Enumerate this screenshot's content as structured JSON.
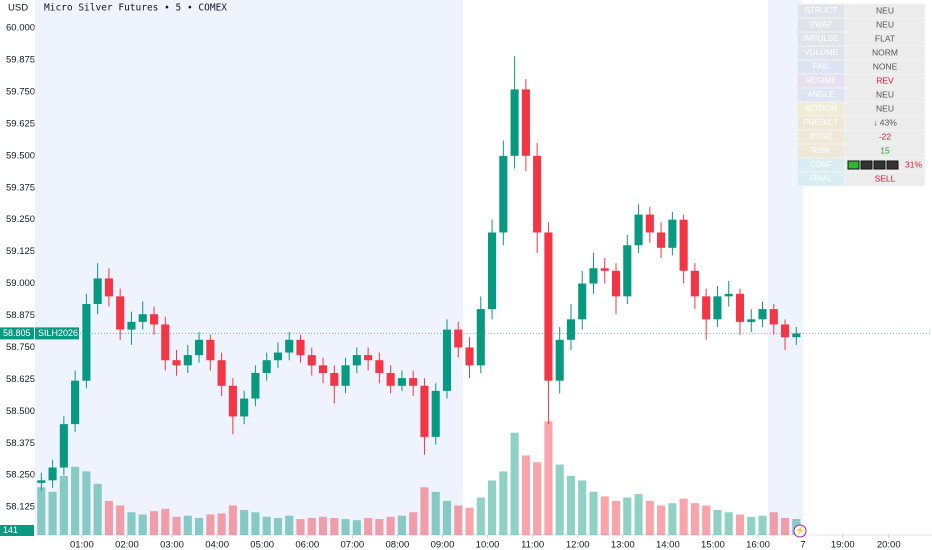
{
  "chart_data": {
    "type": "candlestick",
    "title": "Micro Silver Futures • 5 • COMEX",
    "currency": "USD",
    "symbol": "SILH2026",
    "last_price": 58.805,
    "up_color": "#089981",
    "down_color": "#f23645",
    "x": [
      0.1,
      0.35,
      0.6,
      0.85,
      1.1,
      1.35,
      1.6,
      1.85,
      2.1,
      2.35,
      2.6,
      2.85,
      3.1,
      3.35,
      3.6,
      3.85,
      4.1,
      4.35,
      4.6,
      4.85,
      5.1,
      5.35,
      5.6,
      5.85,
      6.1,
      6.35,
      6.6,
      6.85,
      7.1,
      7.35,
      7.6,
      7.85,
      8.1,
      8.35,
      8.6,
      8.85,
      9.1,
      9.35,
      9.6,
      9.85,
      10.1,
      10.35,
      10.6,
      10.85,
      11.1,
      11.35,
      11.6,
      11.85,
      12.1,
      12.35,
      12.6,
      12.85,
      13.1,
      13.35,
      13.6,
      13.85,
      14.1,
      14.35,
      14.6,
      14.85,
      15.1,
      15.35,
      15.6,
      15.85,
      16.1,
      16.35,
      16.6,
      16.85
    ],
    "open": [
      58.22,
      58.23,
      58.28,
      58.45,
      58.62,
      58.92,
      59.02,
      58.95,
      58.82,
      58.85,
      58.88,
      58.84,
      58.7,
      58.68,
      58.72,
      58.78,
      58.7,
      58.6,
      58.48,
      58.55,
      58.65,
      58.7,
      58.73,
      58.78,
      58.72,
      58.68,
      58.65,
      58.6,
      58.68,
      58.72,
      58.7,
      58.65,
      58.6,
      58.63,
      58.6,
      58.4,
      58.58,
      58.82,
      58.75,
      58.68,
      58.9,
      59.2,
      59.5,
      59.76,
      59.5,
      59.2,
      58.62,
      58.78,
      58.86,
      59.0,
      59.06,
      59.05,
      58.95,
      59.15,
      59.27,
      59.2,
      59.14,
      59.25,
      59.05,
      58.95,
      58.86,
      58.95,
      58.96,
      58.85,
      58.86,
      58.9,
      58.84,
      58.79
    ],
    "high": [
      58.26,
      58.31,
      58.48,
      58.66,
      58.96,
      59.08,
      59.06,
      58.98,
      58.89,
      58.93,
      58.91,
      58.87,
      58.74,
      58.76,
      58.81,
      58.8,
      58.73,
      58.63,
      58.58,
      58.68,
      58.73,
      58.77,
      58.81,
      58.8,
      58.75,
      58.71,
      58.68,
      58.71,
      58.75,
      58.75,
      58.73,
      58.68,
      58.66,
      58.66,
      58.63,
      58.61,
      58.86,
      58.85,
      58.79,
      58.95,
      59.25,
      59.56,
      59.89,
      59.8,
      59.55,
      59.24,
      58.83,
      58.92,
      59.05,
      59.12,
      59.1,
      59.08,
      59.19,
      59.31,
      59.3,
      59.24,
      59.28,
      59.27,
      59.08,
      58.98,
      58.99,
      59.01,
      58.98,
      58.9,
      58.93,
      58.92,
      58.86,
      58.83
    ],
    "low": [
      58.19,
      58.2,
      58.25,
      58.42,
      58.59,
      58.88,
      58.91,
      58.78,
      58.76,
      58.82,
      58.8,
      58.66,
      58.64,
      58.65,
      58.69,
      58.66,
      58.56,
      58.41,
      58.45,
      58.52,
      58.62,
      58.67,
      58.7,
      58.69,
      58.64,
      58.61,
      58.53,
      58.57,
      58.65,
      58.66,
      58.61,
      58.57,
      58.58,
      58.56,
      58.33,
      58.37,
      58.55,
      58.71,
      58.63,
      58.65,
      58.86,
      59.15,
      59.45,
      59.44,
      59.12,
      58.45,
      58.57,
      58.74,
      58.82,
      58.96,
      59.0,
      58.88,
      58.92,
      59.12,
      59.16,
      59.1,
      59.11,
      59.0,
      58.9,
      58.78,
      58.83,
      58.91,
      58.8,
      58.81,
      58.83,
      58.8,
      58.74,
      58.76
    ],
    "close": [
      58.23,
      58.28,
      58.45,
      58.62,
      58.92,
      59.02,
      58.95,
      58.82,
      58.85,
      58.88,
      58.84,
      58.7,
      58.68,
      58.72,
      58.78,
      58.7,
      58.6,
      58.48,
      58.55,
      58.65,
      58.7,
      58.73,
      58.78,
      58.72,
      58.68,
      58.65,
      58.6,
      58.68,
      58.72,
      58.7,
      58.65,
      58.6,
      58.63,
      58.6,
      58.4,
      58.58,
      58.82,
      58.75,
      58.68,
      58.9,
      59.2,
      59.5,
      59.76,
      59.5,
      59.2,
      58.62,
      58.78,
      58.86,
      59.0,
      59.06,
      59.05,
      58.95,
      59.15,
      59.27,
      59.2,
      59.14,
      59.25,
      59.05,
      58.95,
      58.86,
      58.95,
      58.96,
      58.85,
      58.86,
      58.9,
      58.84,
      58.79,
      58.805
    ],
    "volume": [
      420,
      380,
      520,
      600,
      560,
      450,
      300,
      260,
      200,
      180,
      210,
      230,
      160,
      170,
      150,
      180,
      190,
      260,
      220,
      200,
      160,
      150,
      170,
      140,
      150,
      160,
      150,
      140,
      130,
      150,
      140,
      160,
      170,
      200,
      420,
      380,
      300,
      260,
      240,
      330,
      480,
      560,
      900,
      700,
      640,
      1000,
      620,
      520,
      480,
      380,
      340,
      300,
      330,
      360,
      300,
      260,
      280,
      320,
      280,
      260,
      220,
      200,
      180,
      160,
      170,
      200,
      150,
      141
    ],
    "volume_lim": [
      0,
      1100
    ],
    "xlim": [
      -0.04,
      19.86
    ],
    "ylim": [
      58.016,
      60.055
    ],
    "xticks": [
      {
        "value": 1,
        "label": "01:00"
      },
      {
        "value": 2,
        "label": "02:00"
      },
      {
        "value": 3,
        "label": "03:00"
      },
      {
        "value": 4,
        "label": "04:00"
      },
      {
        "value": 5,
        "label": "05:00"
      },
      {
        "value": 6,
        "label": "06:00"
      },
      {
        "value": 7,
        "label": "07:00"
      },
      {
        "value": 8,
        "label": "08:00"
      },
      {
        "value": 9,
        "label": "09:00"
      },
      {
        "value": 10,
        "label": "10:00"
      },
      {
        "value": 11,
        "label": "11:00"
      },
      {
        "value": 12,
        "label": "12:00"
      },
      {
        "value": 13,
        "label": "13:00"
      },
      {
        "value": 14,
        "label": "14:00"
      },
      {
        "value": 15,
        "label": "15:00"
      },
      {
        "value": 16,
        "label": "16:00"
      },
      {
        "value": 17,
        "label": "7"
      },
      {
        "value": 17.88,
        "label": "19:00"
      },
      {
        "value": 18.9,
        "label": "20:00"
      }
    ],
    "yticks": [
      {
        "value": 60,
        "label": "60.000"
      },
      {
        "value": 59.875,
        "label": "59.875"
      },
      {
        "value": 59.75,
        "label": "59.750"
      },
      {
        "value": 59.625,
        "label": "59.625"
      },
      {
        "value": 59.5,
        "label": "59.500"
      },
      {
        "value": 59.375,
        "label": "59.375"
      },
      {
        "value": 59.25,
        "label": "59.250"
      },
      {
        "value": 59.125,
        "label": "59.125"
      },
      {
        "value": 59,
        "label": "59.000"
      },
      {
        "value": 58.875,
        "label": "58.875"
      },
      {
        "value": 58.75,
        "label": "58.750"
      },
      {
        "value": 58.625,
        "label": "58.625"
      },
      {
        "value": 58.5,
        "label": "58.500"
      },
      {
        "value": 58.375,
        "label": "58.375"
      },
      {
        "value": 58.25,
        "label": "58.250"
      },
      {
        "value": 58.125,
        "label": "58.125"
      }
    ],
    "grid": false
  },
  "table": {
    "rows": [
      [
        "STRUCT",
        "NEU"
      ],
      [
        "VWAP",
        "NEU"
      ],
      [
        "IMPULSE",
        "FLAT"
      ],
      [
        "VOLUME",
        "NORM"
      ],
      [
        "FAIL",
        "NONE"
      ],
      [
        "REGIME",
        "REV"
      ],
      [
        "ANGLE",
        "NEU"
      ],
      [
        "MOTION",
        "NEU"
      ],
      [
        "PREDICT",
        "↓ 43%"
      ],
      [
        "EDGE",
        "-22"
      ],
      [
        "RISK",
        "15"
      ],
      [
        "CONF",
        "31%"
      ],
      [
        "FINAL",
        "SELL"
      ]
    ],
    "label_colors": [
      "#dfe3ea",
      "#dfe3ea",
      "#dfe3ea",
      "#dfe3ea",
      "#dde4f3",
      "#e7dff0",
      "#dde4f3",
      "#f1ecd6",
      "#efe8d6",
      "#efe8d6",
      "#efe8d6",
      "#d8eef2",
      "#d8eef2"
    ],
    "value_colors": [
      "#555",
      "#555",
      "#555",
      "#555",
      "#555",
      "#d0202e",
      "#555",
      "#555",
      "#555",
      "#d0202e",
      "#2a9d2a",
      "#d0202e",
      "#d0202e"
    ]
  }
}
